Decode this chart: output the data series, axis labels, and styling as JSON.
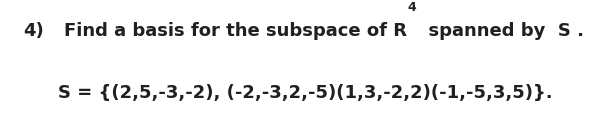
{
  "background_color": "#ffffff",
  "text_color": "#231f20",
  "line1_num": "4)",
  "line1_main": "Find a basis for the subspace of R",
  "line1_sup": "4",
  "line1_end": "  spanned by  S .",
  "line2": "S = {(2,5,-3,-2), (-2,-3,2,-5)(1,3,-2,2)(-1,-5,3,5)}.",
  "font_size": 13.0,
  "sup_font_size": 9.0,
  "font_weight": "bold",
  "font_family": "DejaVu Sans"
}
